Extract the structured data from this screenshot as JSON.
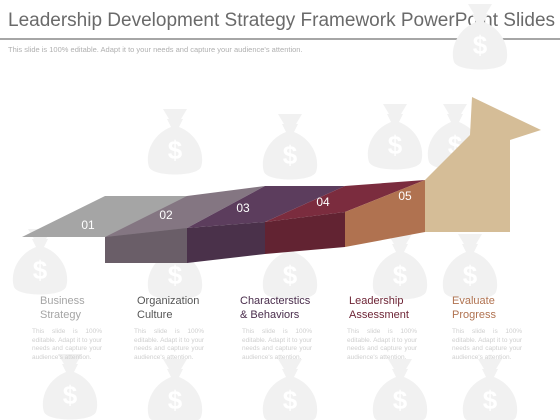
{
  "title": "Leadership Development Strategy Framework PowerPoint Slides",
  "subtitle": "This slide is 100% editable. Adapt it to your needs and capture your audience's attention.",
  "colors": {
    "title": "#6a6a6a",
    "rule": "#a6a6a6",
    "watermark": "#f1f1f1",
    "step1": "#a5a5a5",
    "step2": "#847682",
    "step3": "#5c3d5d",
    "step4": "#7b2c3e",
    "step5": "#b07250",
    "arrow": "#d5bd97"
  },
  "steps": [
    {
      "number": "01",
      "label_line1": "Business",
      "label_line2": "Strategy",
      "label_color": "#a5a5a5",
      "desc": "This slide is 100% editable. Adapt it to your needs and capture your audience's attention."
    },
    {
      "number": "02",
      "label_line1": "Organization",
      "label_line2": "Culture",
      "label_color": "#555555",
      "desc": "This slide is 100% editable. Adapt it to your needs and capture your audience's attention."
    },
    {
      "number": "03",
      "label_line1": "Characterstics",
      "label_line2": "& Behaviors",
      "label_color": "#4a2d4c",
      "desc": "This slide is 100% editable. Adapt it to your needs and capture your audience's attention."
    },
    {
      "number": "04",
      "label_line1": "Leadership",
      "label_line2": "Assessment",
      "label_color": "#6e2536",
      "desc": "This slide is 100% editable. Adapt it to your needs and capture your audience's attention."
    },
    {
      "number": "05",
      "label_line1": "Evaluate",
      "label_line2": "Progress",
      "label_color": "#b07250",
      "desc": "This slide is 100% editable. Adapt it to your needs and capture your audience's attention."
    }
  ],
  "watermark_glyph": "$"
}
